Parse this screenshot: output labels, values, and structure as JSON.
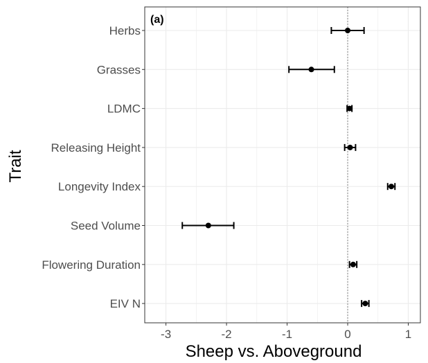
{
  "chart_data": {
    "type": "scatter",
    "panel_label": "(a)",
    "xlabel": "Sheep vs. Aboveground",
    "ylabel": "Trait",
    "xlim": [
      -3.35,
      1.2
    ],
    "x_ticks": [
      -3,
      -2,
      -1,
      0,
      1
    ],
    "x_tick_labels": [
      "-3",
      "-2",
      "-1",
      "0",
      "1"
    ],
    "reference_line_x": 0,
    "grid": true,
    "colors": {
      "point": "#000000",
      "grid": "#ebebeb",
      "border": "#333333",
      "reference": "#7f7f7f"
    },
    "categories": [
      "Herbs",
      "Grasses",
      "LDMC",
      "Releasing Height",
      "Longevity Index",
      "Seed Volume",
      "Flowering Duration",
      "EIV N"
    ],
    "estimates": [
      0.0,
      -0.6,
      0.03,
      0.04,
      0.72,
      -2.3,
      0.09,
      0.29
    ],
    "ci_low": [
      -0.27,
      -0.97,
      -0.01,
      -0.05,
      0.66,
      -2.73,
      0.03,
      0.23
    ],
    "ci_high": [
      0.27,
      -0.22,
      0.07,
      0.13,
      0.78,
      -1.88,
      0.15,
      0.35
    ]
  }
}
